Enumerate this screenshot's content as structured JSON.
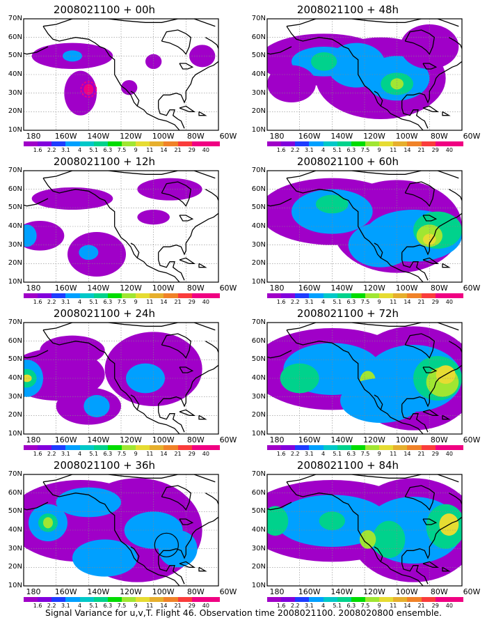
{
  "colors": {
    "levels": [
      "#a000c8",
      "#8200dc",
      "#1e3cff",
      "#00a0ff",
      "#00c8c8",
      "#00d28c",
      "#00dc00",
      "#a0e632",
      "#e6dc32",
      "#e6af2d",
      "#f08228",
      "#fa3c3c",
      "#f00082"
    ],
    "land_outline": "#000000",
    "grid": "#888888"
  },
  "colorbar_labels": [
    "1.6",
    "2.2",
    "3.1",
    "4",
    "5.1",
    "6.3",
    "7.5",
    "9",
    "11",
    "14",
    "21",
    "29",
    "40"
  ],
  "lat_labels": [
    "70N",
    "60N",
    "50N",
    "40N",
    "30N",
    "20N",
    "10N"
  ],
  "lon_labels": [
    "180",
    "160W",
    "140W",
    "120W",
    "100W",
    "80W",
    "60W"
  ],
  "panels": [
    {
      "title": "2008021100 + 00h"
    },
    {
      "title": "2008021100 + 48h"
    },
    {
      "title": "2008021100 + 12h"
    },
    {
      "title": "2008021100 + 60h"
    },
    {
      "title": "2008021100 + 24h"
    },
    {
      "title": "2008021100 + 72h"
    },
    {
      "title": "2008021100 + 36h"
    },
    {
      "title": "2008021100 + 84h"
    }
  ],
  "caption": "Signal Variance for u,v,T. Flight 46. Observation time 2008021100. 2008020800 ensemble."
}
